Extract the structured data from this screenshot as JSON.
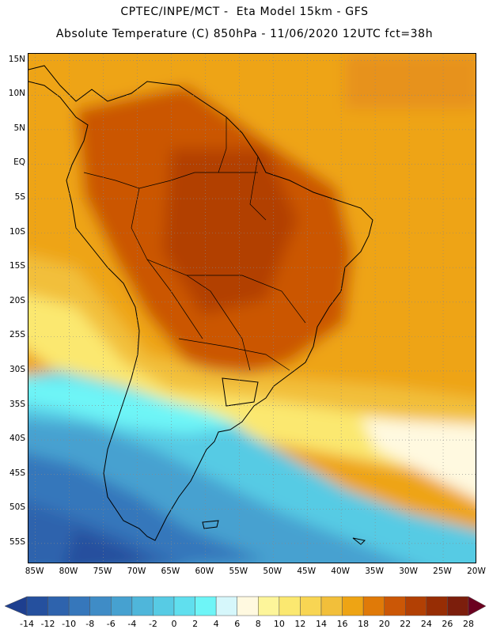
{
  "header": {
    "line1": "CPTEC/INPE/MCT -  Eta Model 15km - GFS",
    "line2": "Absolute Temperature (C) 850hPa - 11/06/2020 12UTC fct=38h"
  },
  "map": {
    "lat_labels": [
      "15N",
      "10N",
      "5N",
      "EQ",
      "5S",
      "10S",
      "15S",
      "20S",
      "25S",
      "30S",
      "35S",
      "40S",
      "45S",
      "50S",
      "55S"
    ],
    "lat_values": [
      15,
      10,
      5,
      0,
      -5,
      -10,
      -15,
      -20,
      -25,
      -30,
      -35,
      -40,
      -45,
      -50,
      -55
    ],
    "lon_labels": [
      "85W",
      "80W",
      "75W",
      "70W",
      "65W",
      "60W",
      "55W",
      "50W",
      "45W",
      "40W",
      "35W",
      "30W",
      "25W",
      "20W"
    ],
    "lon_values": [
      -85,
      -80,
      -75,
      -70,
      -65,
      -60,
      -55,
      -50,
      -45,
      -40,
      -35,
      -30,
      -25,
      -20
    ],
    "lat_range": [
      -58,
      16
    ],
    "lon_range": [
      -86,
      -20
    ],
    "grid": "dotted"
  },
  "colorbar": {
    "labels": [
      "-14",
      "-12",
      "-10",
      "-8",
      "-6",
      "-4",
      "-2",
      "0",
      "2",
      "4",
      "6",
      "8",
      "10",
      "12",
      "14",
      "16",
      "18",
      "20",
      "22",
      "24",
      "26",
      "28"
    ],
    "colors": [
      "#1e3f8f",
      "#25509e",
      "#2e63ad",
      "#3677bb",
      "#3f8cc6",
      "#46a1d0",
      "#4fb6da",
      "#57cbe4",
      "#60dfee",
      "#6ef5f7",
      "#d6f7fb",
      "#fff9e0",
      "#fdf59a",
      "#fbe870",
      "#f8d553",
      "#f2bf3a",
      "#eea414",
      "#e07a08",
      "#cb5706",
      "#b24004",
      "#972d04",
      "#7c1e0c",
      "#6b0020"
    ]
  }
}
